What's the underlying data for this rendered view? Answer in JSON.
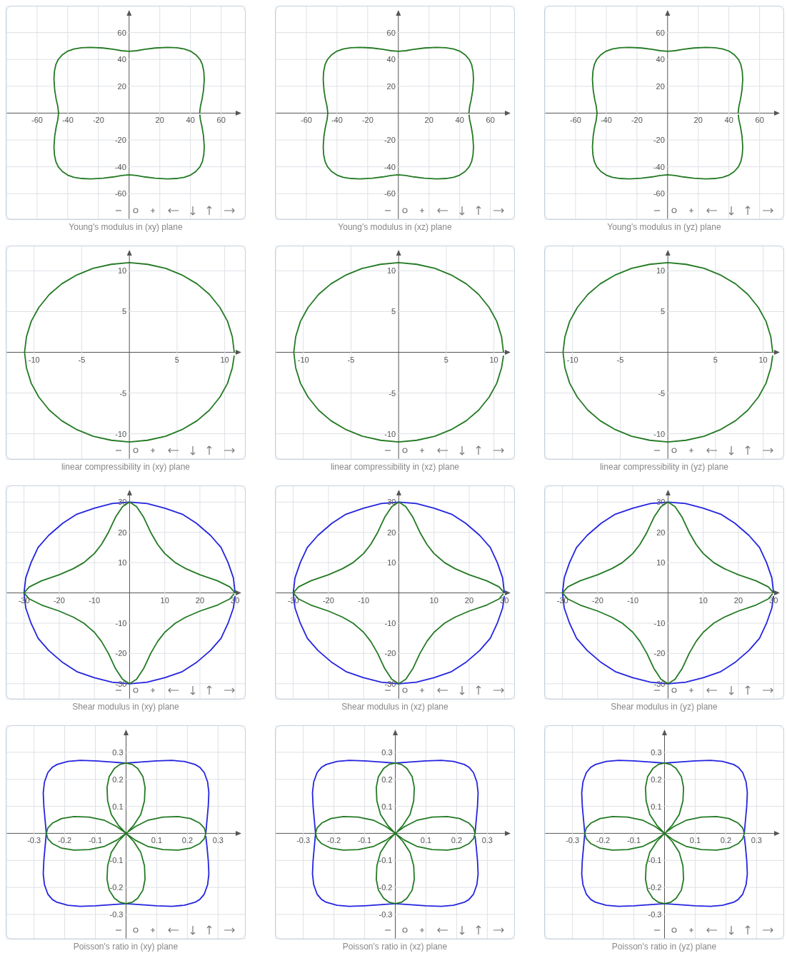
{
  "chart_data": [
    {
      "type": "line",
      "title": "Young's modulus in (xy) plane",
      "xlim": [
        -80,
        76
      ],
      "ylim": [
        -79,
        80
      ],
      "xticks": [
        -60,
        -40,
        -20,
        20,
        40,
        60
      ],
      "yticks": [
        -60,
        -40,
        -20,
        20,
        40,
        60
      ],
      "grid": true,
      "series": [
        {
          "color": "#237a23",
          "x": [
            46,
            46.5,
            47.5,
            48.5,
            49,
            48.7,
            47.8,
            46.2,
            43.5,
            40,
            36,
            31,
            25,
            17,
            10,
            5,
            0,
            -5,
            -10,
            -17,
            -25,
            -31,
            -36,
            -40,
            -43.5,
            -46.2,
            -47.8,
            -48.7,
            -49,
            -48.5,
            -47.5,
            -46.5,
            -46,
            -46.5,
            -47.5,
            -48.5,
            -49,
            -48.7,
            -47.8,
            -46.2,
            -43.5,
            -40,
            -36,
            -31,
            -25,
            -17,
            -10,
            -5,
            0,
            5,
            10,
            17,
            25,
            31,
            36,
            40,
            43.5,
            46.2,
            47.8,
            48.7,
            49,
            48.5,
            47.5,
            46.5,
            46.1
          ],
          "values": [
            0,
            5,
            10,
            17,
            25,
            31,
            36,
            40,
            43.5,
            46.2,
            47.8,
            48.7,
            49,
            48.5,
            47.5,
            46.5,
            46,
            46.5,
            47.5,
            48.5,
            49,
            48.7,
            47.8,
            46.2,
            43.5,
            40,
            36,
            31,
            25,
            17,
            10,
            5,
            0,
            -5,
            -10,
            -17,
            -25,
            -31,
            -36,
            -40,
            -43.5,
            -46.2,
            -47.8,
            -48.7,
            -49,
            -48.5,
            -47.5,
            -46.5,
            -46,
            -46.5,
            -47.5,
            -48.5,
            -49,
            -48.7,
            -47.8,
            -46.2,
            -43.5,
            -40,
            -36,
            -31,
            -25,
            -17,
            -10,
            -5,
            -1
          ]
        }
      ]
    },
    {
      "type": "line",
      "title": "Young's modulus in (xz) plane",
      "xlim": [
        -80,
        76
      ],
      "ylim": [
        -79,
        80
      ],
      "xticks": [
        -60,
        -40,
        -20,
        20,
        40,
        60
      ],
      "yticks": [
        -60,
        -40,
        -20,
        20,
        40,
        60
      ],
      "grid": true,
      "series": [
        {
          "color": "#237a23",
          "x": [
            46,
            46.5,
            47.5,
            48.5,
            49,
            48.7,
            47.8,
            46.2,
            43.5,
            40,
            36,
            31,
            25,
            17,
            10,
            5,
            0,
            -5,
            -10,
            -17,
            -25,
            -31,
            -36,
            -40,
            -43.5,
            -46.2,
            -47.8,
            -48.7,
            -49,
            -48.5,
            -47.5,
            -46.5,
            -46,
            -46.5,
            -47.5,
            -48.5,
            -49,
            -48.7,
            -47.8,
            -46.2,
            -43.5,
            -40,
            -36,
            -31,
            -25,
            -17,
            -10,
            -5,
            0,
            5,
            10,
            17,
            25,
            31,
            36,
            40,
            43.5,
            46.2,
            47.8,
            48.7,
            49,
            48.5,
            47.5,
            46.5,
            46.1
          ],
          "values": [
            0,
            5,
            10,
            17,
            25,
            31,
            36,
            40,
            43.5,
            46.2,
            47.8,
            48.7,
            49,
            48.5,
            47.5,
            46.5,
            46,
            46.5,
            47.5,
            48.5,
            49,
            48.7,
            47.8,
            46.2,
            43.5,
            40,
            36,
            31,
            25,
            17,
            10,
            5,
            0,
            -5,
            -10,
            -17,
            -25,
            -31,
            -36,
            -40,
            -43.5,
            -46.2,
            -47.8,
            -48.7,
            -49,
            -48.5,
            -47.5,
            -46.5,
            -46,
            -46.5,
            -47.5,
            -48.5,
            -49,
            -48.7,
            -47.8,
            -46.2,
            -43.5,
            -40,
            -36,
            -31,
            -25,
            -17,
            -10,
            -5,
            -1
          ]
        }
      ]
    },
    {
      "type": "line",
      "title": "Young's modulus in (yz) plane",
      "xlim": [
        -80,
        76
      ],
      "ylim": [
        -79,
        80
      ],
      "xticks": [
        -60,
        -40,
        -20,
        20,
        40,
        60
      ],
      "yticks": [
        -60,
        -40,
        -20,
        20,
        40,
        60
      ],
      "grid": true,
      "series": [
        {
          "color": "#237a23",
          "x": [
            46,
            46.5,
            47.5,
            48.5,
            49,
            48.7,
            47.8,
            46.2,
            43.5,
            40,
            36,
            31,
            25,
            17,
            10,
            5,
            0,
            -5,
            -10,
            -17,
            -25,
            -31,
            -36,
            -40,
            -43.5,
            -46.2,
            -47.8,
            -48.7,
            -49,
            -48.5,
            -47.5,
            -46.5,
            -46,
            -46.5,
            -47.5,
            -48.5,
            -49,
            -48.7,
            -47.8,
            -46.2,
            -43.5,
            -40,
            -36,
            -31,
            -25,
            -17,
            -10,
            -5,
            0,
            5,
            10,
            17,
            25,
            31,
            36,
            40,
            43.5,
            46.2,
            47.8,
            48.7,
            49,
            48.5,
            47.5,
            46.5,
            46.1
          ],
          "values": [
            0,
            5,
            10,
            17,
            25,
            31,
            36,
            40,
            43.5,
            46.2,
            47.8,
            48.7,
            49,
            48.5,
            47.5,
            46.5,
            46,
            46.5,
            47.5,
            48.5,
            49,
            48.7,
            47.8,
            46.2,
            43.5,
            40,
            36,
            31,
            25,
            17,
            10,
            5,
            0,
            -5,
            -10,
            -17,
            -25,
            -31,
            -36,
            -40,
            -43.5,
            -46.2,
            -47.8,
            -48.7,
            -49,
            -48.5,
            -47.5,
            -46.5,
            -46,
            -46.5,
            -47.5,
            -48.5,
            -49,
            -48.7,
            -47.8,
            -46.2,
            -43.5,
            -40,
            -36,
            -31,
            -25,
            -17,
            -10,
            -5,
            -1
          ]
        }
      ]
    },
    {
      "type": "line",
      "title": "linear compressibility in (xy) plane",
      "xlim": [
        -12.9,
        12.2
      ],
      "ylim": [
        -13.1,
        13.1
      ],
      "xticks": [
        -10,
        -5,
        5,
        10
      ],
      "yticks": [
        -10,
        -5,
        5,
        10
      ],
      "grid": true,
      "series": [
        {
          "color": "#237a23",
          "x": [
            11,
            10.8,
            10.3,
            9.5,
            8.4,
            7.1,
            5.5,
            3.8,
            1.9,
            0,
            -1.9,
            -3.8,
            -5.5,
            -7.1,
            -8.4,
            -9.5,
            -10.3,
            -10.8,
            -11,
            -10.8,
            -10.3,
            -9.5,
            -8.4,
            -7.1,
            -5.5,
            -3.8,
            -1.9,
            0,
            1.9,
            3.8,
            5.5,
            7.1,
            8.4,
            9.5,
            10.3,
            10.8,
            11
          ],
          "values": [
            0,
            1.9,
            3.8,
            5.5,
            7.1,
            8.4,
            9.5,
            10.3,
            10.8,
            11,
            10.8,
            10.3,
            9.5,
            8.4,
            7.1,
            5.5,
            3.8,
            1.9,
            0,
            -1.9,
            -3.8,
            -5.5,
            -7.1,
            -8.4,
            -9.5,
            -10.3,
            -10.8,
            -11,
            -10.8,
            -10.3,
            -9.5,
            -8.4,
            -7.1,
            -5.5,
            -3.8,
            -1.9,
            -0.4
          ]
        }
      ]
    },
    {
      "type": "line",
      "title": "linear compressibility in (xz) plane",
      "xlim": [
        -12.9,
        12.2
      ],
      "ylim": [
        -13.1,
        13.1
      ],
      "xticks": [
        -10,
        -5,
        5,
        10
      ],
      "yticks": [
        -10,
        -5,
        5,
        10
      ],
      "grid": true,
      "series": [
        {
          "color": "#237a23",
          "x": [
            11,
            10.8,
            10.3,
            9.5,
            8.4,
            7.1,
            5.5,
            3.8,
            1.9,
            0,
            -1.9,
            -3.8,
            -5.5,
            -7.1,
            -8.4,
            -9.5,
            -10.3,
            -10.8,
            -11,
            -10.8,
            -10.3,
            -9.5,
            -8.4,
            -7.1,
            -5.5,
            -3.8,
            -1.9,
            0,
            1.9,
            3.8,
            5.5,
            7.1,
            8.4,
            9.5,
            10.3,
            10.8,
            11
          ],
          "values": [
            0,
            1.9,
            3.8,
            5.5,
            7.1,
            8.4,
            9.5,
            10.3,
            10.8,
            11,
            10.8,
            10.3,
            9.5,
            8.4,
            7.1,
            5.5,
            3.8,
            1.9,
            0,
            -1.9,
            -3.8,
            -5.5,
            -7.1,
            -8.4,
            -9.5,
            -10.3,
            -10.8,
            -11,
            -10.8,
            -10.3,
            -9.5,
            -8.4,
            -7.1,
            -5.5,
            -3.8,
            -1.9,
            -0.4
          ]
        }
      ]
    },
    {
      "type": "line",
      "title": "linear compressibility in (yz) plane",
      "xlim": [
        -12.9,
        12.2
      ],
      "ylim": [
        -13.1,
        13.1
      ],
      "xticks": [
        -10,
        -5,
        5,
        10
      ],
      "yticks": [
        -10,
        -5,
        5,
        10
      ],
      "grid": true,
      "series": [
        {
          "color": "#237a23",
          "x": [
            11,
            10.8,
            10.3,
            9.5,
            8.4,
            7.1,
            5.5,
            3.8,
            1.9,
            0,
            -1.9,
            -3.8,
            -5.5,
            -7.1,
            -8.4,
            -9.5,
            -10.3,
            -10.8,
            -11,
            -10.8,
            -10.3,
            -9.5,
            -8.4,
            -7.1,
            -5.5,
            -3.8,
            -1.9,
            0,
            1.9,
            3.8,
            5.5,
            7.1,
            8.4,
            9.5,
            10.3,
            10.8,
            11
          ],
          "values": [
            0,
            1.9,
            3.8,
            5.5,
            7.1,
            8.4,
            9.5,
            10.3,
            10.8,
            11,
            10.8,
            10.3,
            9.5,
            8.4,
            7.1,
            5.5,
            3.8,
            1.9,
            0,
            -1.9,
            -3.8,
            -5.5,
            -7.1,
            -8.4,
            -9.5,
            -10.3,
            -10.8,
            -11,
            -10.8,
            -10.3,
            -9.5,
            -8.4,
            -7.1,
            -5.5,
            -3.8,
            -1.9,
            -0.4
          ]
        }
      ]
    },
    {
      "type": "line",
      "title": "Shear modulus in (xy) plane",
      "xlim": [
        -35,
        33
      ],
      "ylim": [
        -35,
        35.5
      ],
      "xticks": [
        -30,
        -20,
        -10,
        10,
        20,
        30
      ],
      "yticks": [
        -30,
        -20,
        -10,
        10,
        20,
        30
      ],
      "grid": true,
      "series": [
        {
          "color": "#2424e0",
          "x": [
            30,
            29.5,
            28,
            26,
            23,
            19,
            15,
            10,
            5,
            0,
            -5,
            -10,
            -15,
            -19,
            -23,
            -26,
            -28,
            -29.5,
            -30,
            -29.5,
            -28,
            -26,
            -23,
            -19,
            -15,
            -10,
            -5,
            0,
            5,
            10,
            15,
            19,
            23,
            26,
            28,
            29.5,
            30
          ],
          "values": [
            0,
            5,
            10,
            15,
            19,
            23,
            26,
            28,
            29.5,
            30,
            29.5,
            28,
            26,
            23,
            19,
            15,
            10,
            5,
            0,
            -5,
            -10,
            -15,
            -19,
            -23,
            -26,
            -28,
            -29.5,
            -30,
            -29.5,
            -28,
            -26,
            -23,
            -19,
            -15,
            -10,
            -5,
            -1
          ]
        },
        {
          "color": "#237a23",
          "x": [
            30,
            28.5,
            25,
            20,
            16,
            13,
            11.5,
            10,
            8,
            6,
            4,
            2,
            0,
            -2,
            -4,
            -6,
            -8,
            -10,
            -11.5,
            -13,
            -16,
            -20,
            -25,
            -28.5,
            -30,
            -28.5,
            -25,
            -20,
            -16,
            -13,
            -11.5,
            -10,
            -8,
            -6,
            -4,
            -2,
            0,
            2,
            4,
            6,
            8,
            10,
            11.5,
            13,
            16,
            20,
            25,
            28.5,
            29.7
          ],
          "values": [
            0,
            2,
            4,
            6,
            8,
            10,
            11.5,
            13,
            16,
            20,
            25,
            28.5,
            30,
            28.5,
            25,
            20,
            16,
            13,
            11.5,
            10,
            8,
            6,
            4,
            2,
            0,
            -2,
            -4,
            -6,
            -8,
            -10,
            -11.5,
            -13,
            -16,
            -20,
            -25,
            -28.5,
            -30,
            -28.5,
            -25,
            -20,
            -16,
            -13,
            -11.5,
            -10,
            -8,
            -6,
            -4,
            -2,
            -0.3
          ]
        }
      ]
    },
    {
      "type": "line",
      "title": "Shear modulus in (xz) plane",
      "xlim": [
        -35,
        33
      ],
      "ylim": [
        -35,
        35.5
      ],
      "xticks": [
        -30,
        -20,
        -10,
        10,
        20,
        30
      ],
      "yticks": [
        -30,
        -20,
        -10,
        10,
        20,
        30
      ],
      "grid": true,
      "series": [
        {
          "color": "#2424e0",
          "x": [
            30,
            29.5,
            28,
            26,
            23,
            19,
            15,
            10,
            5,
            0,
            -5,
            -10,
            -15,
            -19,
            -23,
            -26,
            -28,
            -29.5,
            -30,
            -29.5,
            -28,
            -26,
            -23,
            -19,
            -15,
            -10,
            -5,
            0,
            5,
            10,
            15,
            19,
            23,
            26,
            28,
            29.5,
            30
          ],
          "values": [
            0,
            5,
            10,
            15,
            19,
            23,
            26,
            28,
            29.5,
            30,
            29.5,
            28,
            26,
            23,
            19,
            15,
            10,
            5,
            0,
            -5,
            -10,
            -15,
            -19,
            -23,
            -26,
            -28,
            -29.5,
            -30,
            -29.5,
            -28,
            -26,
            -23,
            -19,
            -15,
            -10,
            -5,
            -1
          ]
        },
        {
          "color": "#237a23",
          "x": [
            30,
            28.5,
            25,
            20,
            16,
            13,
            11.5,
            10,
            8,
            6,
            4,
            2,
            0,
            -2,
            -4,
            -6,
            -8,
            -10,
            -11.5,
            -13,
            -16,
            -20,
            -25,
            -28.5,
            -30,
            -28.5,
            -25,
            -20,
            -16,
            -13,
            -11.5,
            -10,
            -8,
            -6,
            -4,
            -2,
            0,
            2,
            4,
            6,
            8,
            10,
            11.5,
            13,
            16,
            20,
            25,
            28.5,
            29.7
          ],
          "values": [
            0,
            2,
            4,
            6,
            8,
            10,
            11.5,
            13,
            16,
            20,
            25,
            28.5,
            30,
            28.5,
            25,
            20,
            16,
            13,
            11.5,
            10,
            8,
            6,
            4,
            2,
            0,
            -2,
            -4,
            -6,
            -8,
            -10,
            -11.5,
            -13,
            -16,
            -20,
            -25,
            -28.5,
            -30,
            -28.5,
            -25,
            -20,
            -16,
            -13,
            -11.5,
            -10,
            -8,
            -6,
            -4,
            -2,
            -0.3
          ]
        }
      ]
    },
    {
      "type": "line",
      "title": "Shear modulus in (yz) plane",
      "xlim": [
        -35,
        33
      ],
      "ylim": [
        -35,
        35.5
      ],
      "xticks": [
        -30,
        -20,
        -10,
        10,
        20,
        30
      ],
      "yticks": [
        -30,
        -20,
        -10,
        10,
        20,
        30
      ],
      "grid": true,
      "series": [
        {
          "color": "#2424e0",
          "x": [
            30,
            29.5,
            28,
            26,
            23,
            19,
            15,
            10,
            5,
            0,
            -5,
            -10,
            -15,
            -19,
            -23,
            -26,
            -28,
            -29.5,
            -30,
            -29.5,
            -28,
            -26,
            -23,
            -19,
            -15,
            -10,
            -5,
            0,
            5,
            10,
            15,
            19,
            23,
            26,
            28,
            29.5,
            30
          ],
          "values": [
            0,
            5,
            10,
            15,
            19,
            23,
            26,
            28,
            29.5,
            30,
            29.5,
            28,
            26,
            23,
            19,
            15,
            10,
            5,
            0,
            -5,
            -10,
            -15,
            -19,
            -23,
            -26,
            -28,
            -29.5,
            -30,
            -29.5,
            -28,
            -26,
            -23,
            -19,
            -15,
            -10,
            -5,
            -1
          ]
        },
        {
          "color": "#237a23",
          "x": [
            30,
            28.5,
            25,
            20,
            16,
            13,
            11.5,
            10,
            8,
            6,
            4,
            2,
            0,
            -2,
            -4,
            -6,
            -8,
            -10,
            -11.5,
            -13,
            -16,
            -20,
            -25,
            -28.5,
            -30,
            -28.5,
            -25,
            -20,
            -16,
            -13,
            -11.5,
            -10,
            -8,
            -6,
            -4,
            -2,
            0,
            2,
            4,
            6,
            8,
            10,
            11.5,
            13,
            16,
            20,
            25,
            28.5,
            29.7
          ],
          "values": [
            0,
            2,
            4,
            6,
            8,
            10,
            11.5,
            13,
            16,
            20,
            25,
            28.5,
            30,
            28.5,
            25,
            20,
            16,
            13,
            11.5,
            10,
            8,
            6,
            4,
            2,
            0,
            -2,
            -4,
            -6,
            -8,
            -10,
            -11.5,
            -13,
            -16,
            -20,
            -25,
            -28.5,
            -30,
            -28.5,
            -25,
            -20,
            -16,
            -13,
            -11.5,
            -10,
            -8,
            -6,
            -4,
            -2,
            -0.3
          ]
        }
      ]
    },
    {
      "type": "line",
      "title": "Poisson's ratio in (xy) plane",
      "xlim": [
        -0.39,
        0.39
      ],
      "ylim": [
        -0.39,
        0.4
      ],
      "xticks": [
        -0.3,
        -0.2,
        -0.1,
        0.1,
        0.2,
        0.3
      ],
      "yticks": [
        -0.3,
        -0.2,
        -0.1,
        0.1,
        0.2,
        0.3
      ],
      "grid": true,
      "series": [
        {
          "color": "#2424e0",
          "x": [
            0.26,
            0.264,
            0.268,
            0.27,
            0.266,
            0.255,
            0.24,
            0.225,
            0.19,
            0.15,
            0.1,
            0.05,
            0,
            -0.05,
            -0.1,
            -0.15,
            -0.19,
            -0.225,
            -0.24,
            -0.255,
            -0.266,
            -0.27,
            -0.268,
            -0.264,
            -0.26,
            -0.264,
            -0.268,
            -0.27,
            -0.266,
            -0.255,
            -0.24,
            -0.225,
            -0.19,
            -0.15,
            -0.1,
            -0.05,
            0,
            0.05,
            0.1,
            0.15,
            0.19,
            0.225,
            0.24,
            0.255,
            0.266,
            0.27,
            0.268,
            0.264,
            0.26
          ],
          "values": [
            0,
            0.05,
            0.1,
            0.15,
            0.19,
            0.225,
            0.245,
            0.255,
            0.266,
            0.27,
            0.268,
            0.264,
            0.26,
            0.264,
            0.268,
            0.27,
            0.266,
            0.255,
            0.245,
            0.225,
            0.19,
            0.15,
            0.1,
            0.05,
            0,
            -0.05,
            -0.1,
            -0.15,
            -0.19,
            -0.225,
            -0.245,
            -0.255,
            -0.266,
            -0.27,
            -0.268,
            -0.264,
            -0.26,
            -0.264,
            -0.268,
            -0.27,
            -0.266,
            -0.255,
            -0.245,
            -0.225,
            -0.19,
            -0.15,
            -0.1,
            -0.05,
            -0.01
          ]
        },
        {
          "color": "#237a23",
          "x": [
            0,
            0.03,
            0.07,
            0.12,
            0.17,
            0.21,
            0.24,
            0.255,
            0.26,
            0.255,
            0.24,
            0.21,
            0.17,
            0.12,
            0.07,
            0.03,
            0,
            0.025,
            0.048,
            0.06,
            0.062,
            0.055,
            0.038,
            0.02,
            0,
            -0.02,
            -0.038,
            -0.055,
            -0.062,
            -0.06,
            -0.048,
            -0.025,
            0,
            -0.03,
            -0.07,
            -0.12,
            -0.17,
            -0.21,
            -0.24,
            -0.255,
            -0.26,
            -0.255,
            -0.24,
            -0.21,
            -0.17,
            -0.12,
            -0.07,
            -0.03,
            0,
            -0.025,
            -0.048,
            -0.06,
            -0.062,
            -0.055,
            -0.038,
            -0.02,
            0,
            0.02,
            0.038,
            0.055,
            0.062,
            0.06,
            0.048,
            0.025,
            0.006
          ],
          "values": [
            0,
            0.025,
            0.048,
            0.06,
            0.062,
            0.055,
            0.038,
            0.02,
            0,
            -0.02,
            -0.038,
            -0.055,
            -0.062,
            -0.06,
            -0.048,
            -0.025,
            0,
            -0.03,
            -0.07,
            -0.12,
            -0.17,
            -0.21,
            -0.24,
            -0.255,
            -0.26,
            -0.255,
            -0.24,
            -0.21,
            -0.17,
            -0.12,
            -0.07,
            -0.03,
            0,
            -0.025,
            -0.048,
            -0.06,
            -0.062,
            -0.055,
            -0.038,
            -0.02,
            0,
            0.02,
            0.038,
            0.055,
            0.062,
            0.06,
            0.048,
            0.025,
            0,
            0.03,
            0.07,
            0.12,
            0.17,
            0.21,
            0.24,
            0.255,
            0.26,
            0.255,
            0.24,
            0.21,
            0.17,
            0.12,
            0.07,
            0.03,
            0.007
          ]
        }
      ]
    },
    {
      "type": "line",
      "title": "Poisson's ratio in (xz) plane",
      "xlim": [
        -0.39,
        0.39
      ],
      "ylim": [
        -0.39,
        0.4
      ],
      "xticks": [
        -0.3,
        -0.2,
        -0.1,
        0.1,
        0.2,
        0.3
      ],
      "yticks": [
        -0.3,
        -0.2,
        -0.1,
        0.1,
        0.2,
        0.3
      ],
      "grid": true,
      "series": [
        {
          "color": "#2424e0",
          "x": [
            0.26,
            0.264,
            0.268,
            0.27,
            0.266,
            0.255,
            0.24,
            0.225,
            0.19,
            0.15,
            0.1,
            0.05,
            0,
            -0.05,
            -0.1,
            -0.15,
            -0.19,
            -0.225,
            -0.24,
            -0.255,
            -0.266,
            -0.27,
            -0.268,
            -0.264,
            -0.26,
            -0.264,
            -0.268,
            -0.27,
            -0.266,
            -0.255,
            -0.24,
            -0.225,
            -0.19,
            -0.15,
            -0.1,
            -0.05,
            0,
            0.05,
            0.1,
            0.15,
            0.19,
            0.225,
            0.24,
            0.255,
            0.266,
            0.27,
            0.268,
            0.264,
            0.26
          ],
          "values": [
            0,
            0.05,
            0.1,
            0.15,
            0.19,
            0.225,
            0.245,
            0.255,
            0.266,
            0.27,
            0.268,
            0.264,
            0.26,
            0.264,
            0.268,
            0.27,
            0.266,
            0.255,
            0.245,
            0.225,
            0.19,
            0.15,
            0.1,
            0.05,
            0,
            -0.05,
            -0.1,
            -0.15,
            -0.19,
            -0.225,
            -0.245,
            -0.255,
            -0.266,
            -0.27,
            -0.268,
            -0.264,
            -0.26,
            -0.264,
            -0.268,
            -0.27,
            -0.266,
            -0.255,
            -0.245,
            -0.225,
            -0.19,
            -0.15,
            -0.1,
            -0.05,
            -0.01
          ]
        },
        {
          "color": "#237a23",
          "x": [
            0,
            0.03,
            0.07,
            0.12,
            0.17,
            0.21,
            0.24,
            0.255,
            0.26,
            0.255,
            0.24,
            0.21,
            0.17,
            0.12,
            0.07,
            0.03,
            0,
            0.025,
            0.048,
            0.06,
            0.062,
            0.055,
            0.038,
            0.02,
            0,
            -0.02,
            -0.038,
            -0.055,
            -0.062,
            -0.06,
            -0.048,
            -0.025,
            0,
            -0.03,
            -0.07,
            -0.12,
            -0.17,
            -0.21,
            -0.24,
            -0.255,
            -0.26,
            -0.255,
            -0.24,
            -0.21,
            -0.17,
            -0.12,
            -0.07,
            -0.03,
            0,
            -0.025,
            -0.048,
            -0.06,
            -0.062,
            -0.055,
            -0.038,
            -0.02,
            0,
            0.02,
            0.038,
            0.055,
            0.062,
            0.06,
            0.048,
            0.025,
            0.006
          ],
          "values": [
            0,
            0.025,
            0.048,
            0.06,
            0.062,
            0.055,
            0.038,
            0.02,
            0,
            -0.02,
            -0.038,
            -0.055,
            -0.062,
            -0.06,
            -0.048,
            -0.025,
            0,
            -0.03,
            -0.07,
            -0.12,
            -0.17,
            -0.21,
            -0.24,
            -0.255,
            -0.26,
            -0.255,
            -0.24,
            -0.21,
            -0.17,
            -0.12,
            -0.07,
            -0.03,
            0,
            -0.025,
            -0.048,
            -0.06,
            -0.062,
            -0.055,
            -0.038,
            -0.02,
            0,
            0.02,
            0.038,
            0.055,
            0.062,
            0.06,
            0.048,
            0.025,
            0,
            0.03,
            0.07,
            0.12,
            0.17,
            0.21,
            0.24,
            0.255,
            0.26,
            0.255,
            0.24,
            0.21,
            0.17,
            0.12,
            0.07,
            0.03,
            0.007
          ]
        }
      ]
    },
    {
      "type": "line",
      "title": "Poisson's ratio in (yz) plane",
      "xlim": [
        -0.39,
        0.39
      ],
      "ylim": [
        -0.39,
        0.4
      ],
      "xticks": [
        -0.3,
        -0.2,
        -0.1,
        0.1,
        0.2,
        0.3
      ],
      "yticks": [
        -0.3,
        -0.2,
        -0.1,
        0.1,
        0.2,
        0.3
      ],
      "grid": true,
      "series": [
        {
          "color": "#2424e0",
          "x": [
            0.26,
            0.264,
            0.268,
            0.27,
            0.266,
            0.255,
            0.24,
            0.225,
            0.19,
            0.15,
            0.1,
            0.05,
            0,
            -0.05,
            -0.1,
            -0.15,
            -0.19,
            -0.225,
            -0.24,
            -0.255,
            -0.266,
            -0.27,
            -0.268,
            -0.264,
            -0.26,
            -0.264,
            -0.268,
            -0.27,
            -0.266,
            -0.255,
            -0.24,
            -0.225,
            -0.19,
            -0.15,
            -0.1,
            -0.05,
            0,
            0.05,
            0.1,
            0.15,
            0.19,
            0.225,
            0.24,
            0.255,
            0.266,
            0.27,
            0.268,
            0.264,
            0.26
          ],
          "values": [
            0,
            0.05,
            0.1,
            0.15,
            0.19,
            0.225,
            0.245,
            0.255,
            0.266,
            0.27,
            0.268,
            0.264,
            0.26,
            0.264,
            0.268,
            0.27,
            0.266,
            0.255,
            0.245,
            0.225,
            0.19,
            0.15,
            0.1,
            0.05,
            0,
            -0.05,
            -0.1,
            -0.15,
            -0.19,
            -0.225,
            -0.245,
            -0.255,
            -0.266,
            -0.27,
            -0.268,
            -0.264,
            -0.26,
            -0.264,
            -0.268,
            -0.27,
            -0.266,
            -0.255,
            -0.245,
            -0.225,
            -0.19,
            -0.15,
            -0.1,
            -0.05,
            -0.01
          ]
        },
        {
          "color": "#237a23",
          "x": [
            0,
            0.03,
            0.07,
            0.12,
            0.17,
            0.21,
            0.24,
            0.255,
            0.26,
            0.255,
            0.24,
            0.21,
            0.17,
            0.12,
            0.07,
            0.03,
            0,
            0.025,
            0.048,
            0.06,
            0.062,
            0.055,
            0.038,
            0.02,
            0,
            -0.02,
            -0.038,
            -0.055,
            -0.062,
            -0.06,
            -0.048,
            -0.025,
            0,
            -0.03,
            -0.07,
            -0.12,
            -0.17,
            -0.21,
            -0.24,
            -0.255,
            -0.26,
            -0.255,
            -0.24,
            -0.21,
            -0.17,
            -0.12,
            -0.07,
            -0.03,
            0,
            -0.025,
            -0.048,
            -0.06,
            -0.062,
            -0.055,
            -0.038,
            -0.02,
            0,
            0.02,
            0.038,
            0.055,
            0.062,
            0.06,
            0.048,
            0.025,
            0.006
          ],
          "values": [
            0,
            0.025,
            0.048,
            0.06,
            0.062,
            0.055,
            0.038,
            0.02,
            0,
            -0.02,
            -0.038,
            -0.055,
            -0.062,
            -0.06,
            -0.048,
            -0.025,
            0,
            -0.03,
            -0.07,
            -0.12,
            -0.17,
            -0.21,
            -0.24,
            -0.255,
            -0.26,
            -0.255,
            -0.24,
            -0.21,
            -0.17,
            -0.12,
            -0.07,
            -0.03,
            0,
            -0.025,
            -0.048,
            -0.06,
            -0.062,
            -0.055,
            -0.038,
            -0.02,
            0,
            0.02,
            0.038,
            0.055,
            0.062,
            0.06,
            0.048,
            0.025,
            0,
            0.03,
            0.07,
            0.12,
            0.17,
            0.21,
            0.24,
            0.255,
            0.26,
            0.255,
            0.24,
            0.21,
            0.17,
            0.12,
            0.07,
            0.03,
            0.007
          ]
        }
      ]
    }
  ]
}
